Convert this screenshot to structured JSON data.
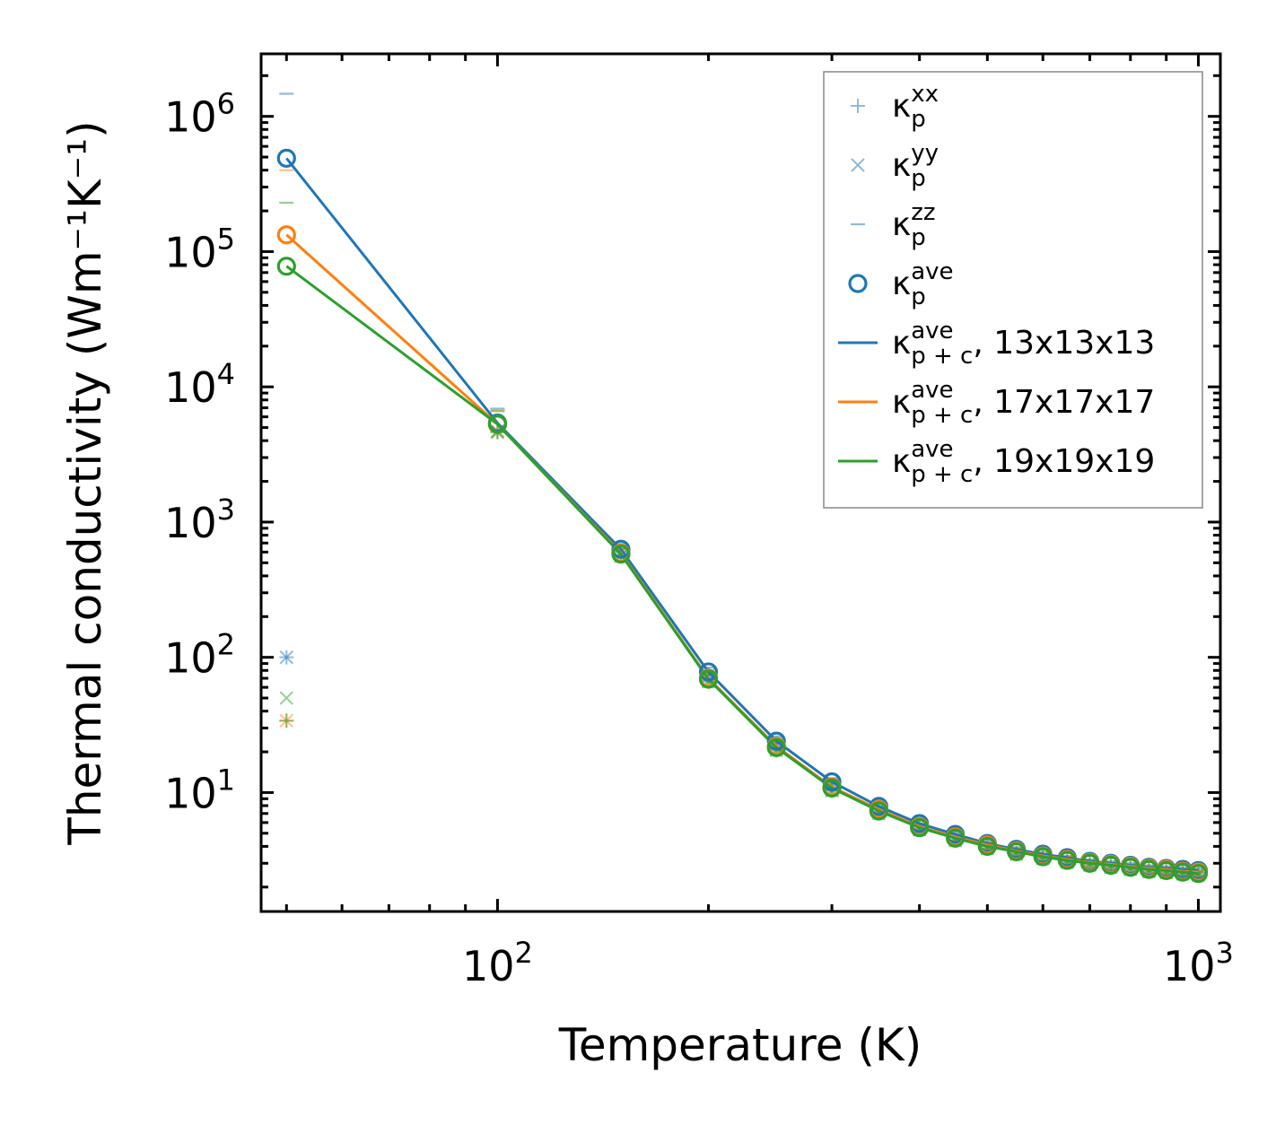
{
  "chart_data": {
    "type": "line",
    "title": "",
    "xlabel": "Temperature (K)",
    "ylabel": "Thermal conductivity (Wm⁻¹K⁻¹)",
    "xscale": "log",
    "yscale": "log",
    "xlim": [
      46,
      1075
    ],
    "ylim": [
      1.32,
      2900000
    ],
    "x_ticks": [
      {
        "base": "10",
        "exp": "2"
      },
      {
        "base": "10",
        "exp": "3"
      }
    ],
    "y_ticks": [
      {
        "base": "10",
        "exp": "1"
      },
      {
        "base": "10",
        "exp": "2"
      },
      {
        "base": "10",
        "exp": "3"
      },
      {
        "base": "10",
        "exp": "4"
      },
      {
        "base": "10",
        "exp": "5"
      },
      {
        "base": "10",
        "exp": "6"
      }
    ],
    "legend_position": "top-right",
    "colors": {
      "blue": "#1f77b4",
      "orange": "#ff7f0e",
      "green": "#2ca02c"
    },
    "legend": [
      {
        "marker": "plus",
        "color": "#1f77b4",
        "alpha": 0.5,
        "symbol": "κ",
        "sub": "p",
        "sup": "xx",
        "suffix": ""
      },
      {
        "marker": "x",
        "color": "#1f77b4",
        "alpha": 0.5,
        "symbol": "κ",
        "sub": "p",
        "sup": "yy",
        "suffix": ""
      },
      {
        "marker": "dash",
        "color": "#1f77b4",
        "alpha": 0.5,
        "symbol": "κ",
        "sub": "p",
        "sup": "zz",
        "suffix": ""
      },
      {
        "marker": "circle",
        "color": "#1f77b4",
        "alpha": 1,
        "symbol": "κ",
        "sub": "p",
        "sup": "ave",
        "suffix": ""
      },
      {
        "marker": "line",
        "color": "#1f77b4",
        "alpha": 1,
        "symbol": "κ",
        "sub": "p + c",
        "sup": "ave",
        "suffix": ", 13x13x13"
      },
      {
        "marker": "line",
        "color": "#ff7f0e",
        "alpha": 1,
        "symbol": "κ",
        "sub": "p + c",
        "sup": "ave",
        "suffix": ", 17x17x17"
      },
      {
        "marker": "line",
        "color": "#2ca02c",
        "alpha": 1,
        "symbol": "κ",
        "sub": "p + c",
        "sup": "ave",
        "suffix": ", 19x19x19"
      }
    ],
    "x": [
      50,
      100,
      150,
      200,
      250,
      300,
      350,
      400,
      450,
      500,
      550,
      600,
      650,
      700,
      750,
      800,
      850,
      900,
      950,
      1000
    ],
    "series": [
      {
        "name": "13x13x13",
        "color": "#1f77b4",
        "ave": [
          490000,
          5400,
          630,
          78,
          24,
          12,
          7.9,
          5.9,
          4.9,
          4.2,
          3.8,
          3.5,
          3.3,
          3.1,
          3.0,
          2.9,
          2.8,
          2.75,
          2.7,
          2.65
        ],
        "xx": [
          100,
          4700,
          600,
          74,
          23,
          11.4,
          7.6,
          5.7,
          4.7,
          4.0,
          3.6,
          3.35,
          3.15,
          3.0,
          2.9,
          2.8,
          2.7,
          2.65,
          2.6,
          2.55
        ],
        "yy": [
          100,
          4700,
          600,
          74,
          23,
          11.4,
          7.6,
          5.7,
          4.7,
          4.0,
          3.6,
          3.35,
          3.15,
          3.0,
          2.9,
          2.8,
          2.7,
          2.65,
          2.6,
          2.55
        ],
        "zz": [
          1470000,
          6900,
          690,
          84,
          26,
          12.8,
          8.4,
          6.2,
          5.1,
          4.4,
          3.95,
          3.65,
          3.4,
          3.2,
          3.1,
          3.0,
          2.9,
          2.85,
          2.8,
          2.75
        ]
      },
      {
        "name": "17x17x17",
        "color": "#ff7f0e",
        "ave": [
          133000,
          5300,
          590,
          70,
          22,
          11,
          7.5,
          5.6,
          4.7,
          4.1,
          3.7,
          3.4,
          3.2,
          3.05,
          2.95,
          2.85,
          2.75,
          2.7,
          2.62,
          2.58
        ],
        "xx": [
          34,
          4700,
          570,
          67,
          21,
          10.5,
          7.2,
          5.4,
          4.5,
          3.9,
          3.55,
          3.3,
          3.1,
          2.95,
          2.85,
          2.75,
          2.65,
          2.6,
          2.55,
          2.5
        ],
        "yy": [
          34,
          4700,
          570,
          67,
          21,
          10.5,
          7.2,
          5.4,
          4.5,
          3.9,
          3.55,
          3.3,
          3.1,
          2.95,
          2.85,
          2.75,
          2.65,
          2.6,
          2.55,
          2.5
        ],
        "zz": [
          400000,
          6700,
          640,
          76,
          24,
          12,
          8.0,
          5.9,
          4.9,
          4.3,
          3.9,
          3.55,
          3.35,
          3.15,
          3.05,
          2.95,
          2.85,
          2.78,
          2.7,
          2.66
        ]
      },
      {
        "name": "19x19x19",
        "color": "#2ca02c",
        "ave": [
          78000,
          5300,
          580,
          69,
          21.5,
          10.8,
          7.3,
          5.5,
          4.6,
          4.0,
          3.65,
          3.35,
          3.15,
          3.0,
          2.9,
          2.8,
          2.7,
          2.65,
          2.58,
          2.52
        ],
        "xx": [
          34,
          4600,
          560,
          66,
          20.5,
          10.3,
          7.0,
          5.3,
          4.4,
          3.85,
          3.5,
          3.25,
          3.05,
          2.9,
          2.8,
          2.7,
          2.6,
          2.55,
          2.5,
          2.45
        ],
        "yy": [
          50,
          4600,
          560,
          66,
          20.5,
          10.3,
          7.0,
          5.3,
          4.4,
          3.85,
          3.5,
          3.25,
          3.05,
          2.9,
          2.8,
          2.7,
          2.6,
          2.55,
          2.5,
          2.45
        ],
        "zz": [
          230000,
          6600,
          630,
          75,
          23.5,
          11.8,
          7.9,
          5.8,
          4.85,
          4.25,
          3.85,
          3.5,
          3.3,
          3.1,
          3.0,
          2.9,
          2.8,
          2.72,
          2.66,
          2.6
        ]
      }
    ]
  }
}
